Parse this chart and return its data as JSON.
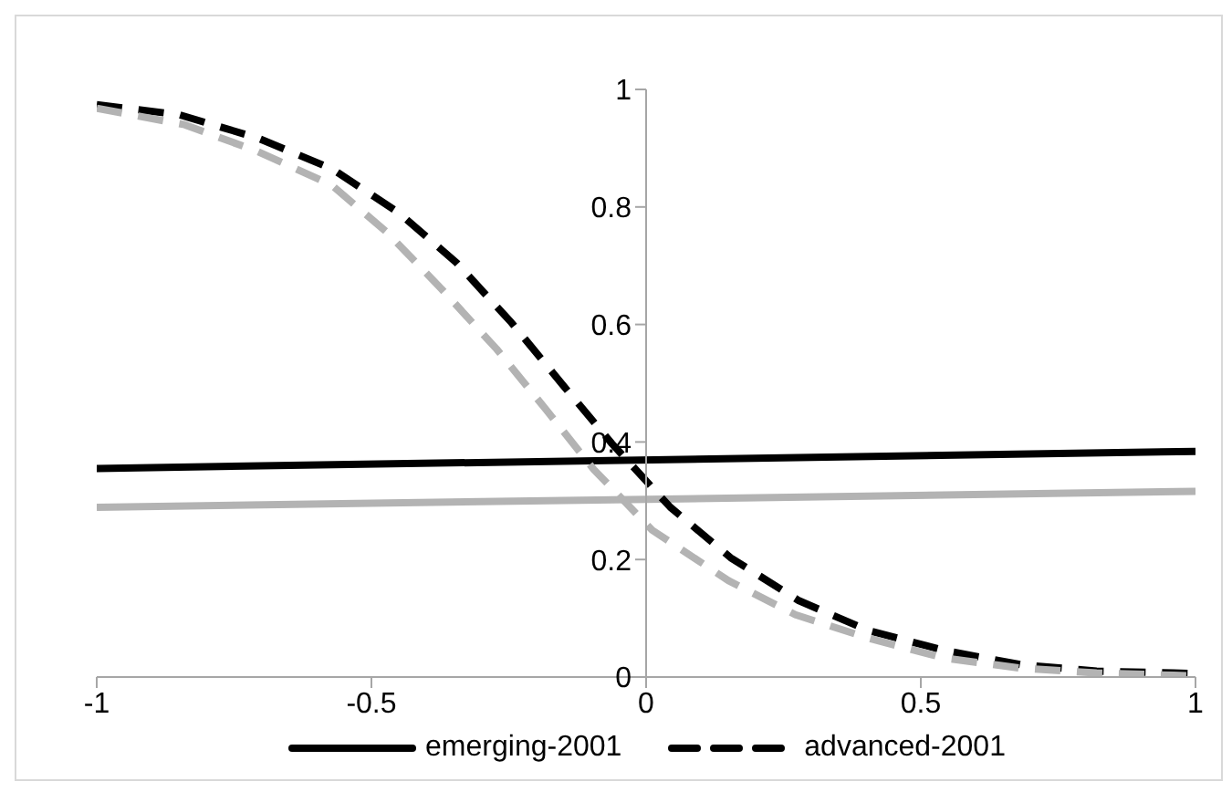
{
  "chart_data": {
    "type": "line",
    "xlim": [
      -1,
      1
    ],
    "xticks": [
      -1,
      -0.5,
      0,
      0.5,
      1
    ],
    "ylim": [
      0,
      1
    ],
    "yticks": [
      0,
      0.2,
      0.4,
      0.6,
      0.8,
      1
    ],
    "grid": false,
    "legend": "bottom",
    "marker": "none",
    "series": [
      {
        "name": "emerging-2001",
        "color": "#000000",
        "line_style": "solid",
        "x": [
          -1,
          1
        ],
        "values": [
          0.355,
          0.384
        ]
      },
      {
        "color": "#b3b3b3",
        "line_style": "solid",
        "x": [
          -1,
          1
        ],
        "values": [
          0.289,
          0.316
        ]
      },
      {
        "name": "advanced-2001",
        "color": "#000000",
        "line_style": "dashed",
        "x": [
          -1,
          -0.85,
          -0.706,
          -0.572,
          -0.45,
          -0.345,
          -0.245,
          -0.149,
          -0.062,
          0.044,
          0.154,
          0.278,
          0.405,
          0.544,
          0.683,
          0.82,
          0.96,
          1
        ],
        "values": [
          0.974,
          0.957,
          0.917,
          0.865,
          0.79,
          0.705,
          0.603,
          0.494,
          0.397,
          0.289,
          0.203,
          0.13,
          0.079,
          0.045,
          0.021,
          0.01,
          0.007,
          0.006
        ]
      },
      {
        "color": "#b3b3b3",
        "line_style": "dashed",
        "x": [
          -1,
          -0.84,
          -0.706,
          -0.572,
          -0.472,
          -0.372,
          -0.272,
          -0.182,
          -0.095,
          0.011,
          0.15,
          0.272,
          0.405,
          0.544,
          0.683,
          0.82,
          0.96,
          1
        ],
        "values": [
          0.968,
          0.94,
          0.894,
          0.837,
          0.757,
          0.66,
          0.558,
          0.455,
          0.353,
          0.25,
          0.164,
          0.106,
          0.066,
          0.032,
          0.015,
          0.007,
          0.003,
          0.002
        ]
      }
    ]
  }
}
